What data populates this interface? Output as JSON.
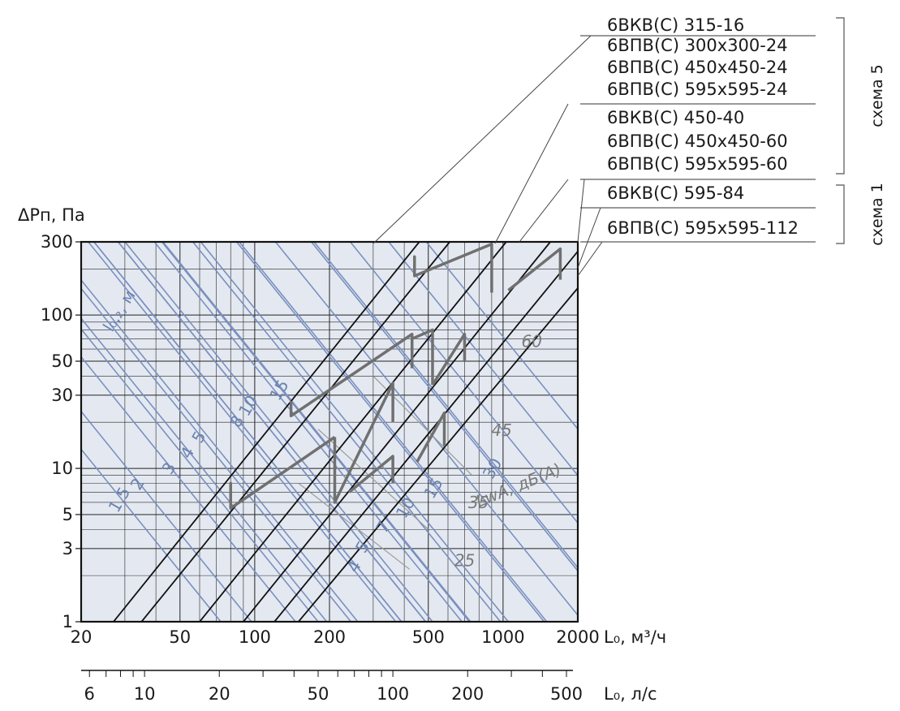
{
  "chart_data": {
    "type": "line",
    "title": "",
    "xlabel": "L₀, м³/ч",
    "xlabel_secondary": "L₀, л/с",
    "ylabel": "ΔPп, Па",
    "x_scale": "log",
    "y_scale": "log",
    "xlim": [
      20,
      2000
    ],
    "ylim": [
      1,
      300
    ],
    "grid": true,
    "x_ticks": [
      "20",
      "50",
      "100",
      "200",
      "500",
      "1000",
      "2000"
    ],
    "x_tick_values": [
      20,
      50,
      100,
      200,
      500,
      1000,
      2000
    ],
    "x2_ticks": [
      "6",
      "10",
      "20",
      "50",
      "100",
      "200",
      "500"
    ],
    "x2_tick_values": [
      6,
      10,
      20,
      50,
      100,
      200,
      500
    ],
    "y_ticks": [
      "1",
      "3",
      "5",
      "10",
      "30",
      "50",
      "100",
      "300"
    ],
    "y_tick_values": [
      1,
      3,
      5,
      10,
      30,
      50,
      100,
      300
    ],
    "throw_label": "l₀,₂, м",
    "throw_lines": [
      {
        "label": "1,5",
        "q": 1.5,
        "L_at_1Pa": 73
      },
      {
        "label": "2",
        "q": 2,
        "L_at_1Pa": 97
      },
      {
        "label": "3",
        "q": 3,
        "L_at_1Pa": 146
      },
      {
        "label": "4",
        "q": 4,
        "L_at_1Pa": 195
      },
      {
        "label": "5",
        "q": 5,
        "L_at_1Pa": 244
      },
      {
        "label": "8",
        "q": 8,
        "L_at_1Pa": 390
      },
      {
        "label": "10",
        "q": 10,
        "L_at_1Pa": 488
      },
      {
        "label": "15",
        "q": 15,
        "L_at_1Pa": 732
      },
      {
        "label": "4",
        "q": 4,
        "L_at_1Pa": 390
      },
      {
        "label": "5",
        "q": 5,
        "L_at_1Pa": 488
      },
      {
        "label": "7",
        "q": 7,
        "L_at_1Pa": 683
      },
      {
        "label": "10",
        "q": 10,
        "L_at_1Pa": 976
      },
      {
        "label": "15",
        "q": 15,
        "L_at_1Pa": 1464
      },
      {
        "label": "30",
        "q": 30,
        "L_at_1Pa": 2928
      }
    ],
    "noise_label": "LwA, дБ(А)",
    "noise_levels": [
      "25",
      "35",
      "45",
      "60"
    ],
    "series": [
      {
        "name": "6ВКВ(С) 315-16",
        "points": [
          [
            27,
            1
          ],
          [
            460,
            300
          ]
        ]
      },
      {
        "name": "6ВПВ(С) 300x300-24 / 450x450-24 / 595x595-24",
        "points": [
          [
            35,
            1
          ],
          [
            610,
            300
          ]
        ]
      },
      {
        "name": "6ВКВ(С) 450-40",
        "points": [
          [
            60,
            1
          ],
          [
            1030,
            300
          ]
        ]
      },
      {
        "name": "6ВПВ(С) 450x450-60 / 595x595-60",
        "points": [
          [
            90,
            1
          ],
          [
            1550,
            300
          ]
        ]
      },
      {
        "name": "6ВКВ(С) 595-84",
        "points": [
          [
            120,
            1
          ],
          [
            2000,
            260
          ]
        ]
      },
      {
        "name": "6ВПВ(С) 595x595-112",
        "points": [
          [
            150,
            1
          ],
          [
            2000,
            150
          ]
        ]
      }
    ],
    "legend_entries": [
      "6ВКВ(С) 315-16",
      "6ВПВ(С) 300x300-24",
      "6ВПВ(С) 450x450-24",
      "6ВПВ(С) 595x595-24",
      "6ВКВ(С) 450-40",
      "6ВПВ(С) 450x450-60",
      "6ВПВ(С) 595x595-60",
      "6ВКВ(С) 595-84",
      "6ВПВ(С) 595x595-112"
    ],
    "scheme_labels": [
      "схема 5",
      "схема 1"
    ],
    "legend_placement": "top-right",
    "colors": {
      "plot_bg": "#e4e9f1",
      "throw_line": "#7b90bf",
      "noise_line": "#808080",
      "model_line": "#111111"
    }
  }
}
